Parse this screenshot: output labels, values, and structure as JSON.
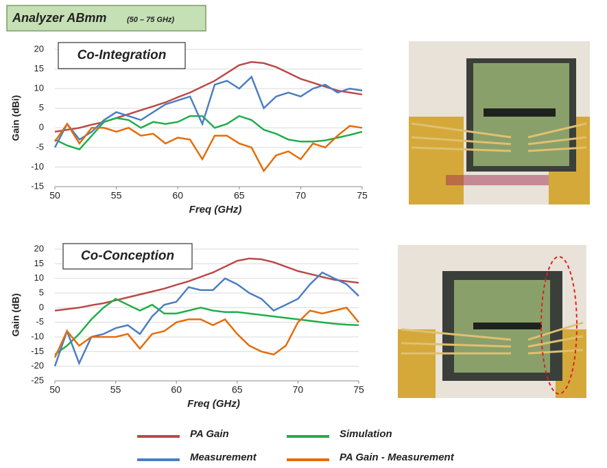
{
  "header": {
    "title": "Analyzer ABmm",
    "subtitle": "(50 – 75 GHz)"
  },
  "chart_data": [
    {
      "type": "line",
      "annotation": "Co-Integration",
      "xlabel": "Freq (GHz)",
      "ylabel": "Gain (dBi)",
      "x": [
        50,
        51,
        52,
        53,
        54,
        55,
        56,
        57,
        58,
        59,
        60,
        61,
        62,
        63,
        64,
        65,
        66,
        67,
        68,
        69,
        70,
        71,
        72,
        73,
        74,
        75
      ],
      "xlim": [
        50,
        75
      ],
      "xticks": [
        50,
        55,
        60,
        65,
        70,
        75
      ],
      "ylim": [
        -15,
        20
      ],
      "yticks": [
        -15,
        -10,
        -5,
        0,
        5,
        10,
        15,
        20
      ],
      "grid": true,
      "series": [
        {
          "name": "PA Gain",
          "color": "#b94a48",
          "values": [
            -1,
            -0.5,
            0,
            0.8,
            1.5,
            2.5,
            3.5,
            4.5,
            5.5,
            6.5,
            7.8,
            9,
            10.5,
            12,
            14,
            16,
            16.8,
            16.5,
            15.5,
            14,
            12.5,
            11.5,
            10.5,
            9.5,
            9,
            8.5
          ]
        },
        {
          "name": "Simulation",
          "color": "#1fae4a",
          "values": [
            -3,
            -4.5,
            -5.5,
            -2,
            1.5,
            2.5,
            2,
            0,
            1.5,
            1,
            1.5,
            3,
            3,
            0,
            1,
            3,
            2,
            -0.5,
            -1.5,
            -3,
            -3.5,
            -3.5,
            -3.2,
            -2.5,
            -1.8,
            -1
          ]
        },
        {
          "name": "Measurement",
          "color": "#4a7ec2",
          "values": [
            -5,
            1,
            -3,
            -1,
            2,
            4,
            3,
            2,
            4,
            6,
            7,
            8,
            1,
            11,
            12,
            10,
            13,
            5,
            8,
            9,
            8,
            10,
            11,
            9,
            10,
            9.5
          ]
        },
        {
          "name": "PA Gain - Measurement",
          "color": "#e46c0a",
          "values": [
            -3.5,
            1,
            -4,
            0,
            0,
            -1,
            0,
            -2,
            -1.5,
            -4,
            -2.5,
            -3,
            -8,
            -2,
            -2,
            -4,
            -5,
            -11,
            -7,
            -6,
            -8,
            -4,
            -5,
            -2,
            0.5,
            0
          ]
        }
      ]
    },
    {
      "type": "line",
      "annotation": "Co-Conception",
      "xlabel": "Freq (GHz)",
      "ylabel": "Gain (dB)",
      "x": [
        50,
        51,
        52,
        53,
        54,
        55,
        56,
        57,
        58,
        59,
        60,
        61,
        62,
        63,
        64,
        65,
        66,
        67,
        68,
        69,
        70,
        71,
        72,
        73,
        74,
        75
      ],
      "xlim": [
        50,
        75
      ],
      "xticks": [
        50,
        55,
        60,
        65,
        70,
        75
      ],
      "ylim": [
        -25,
        20
      ],
      "yticks": [
        -25,
        -20,
        -15,
        -10,
        -5,
        0,
        5,
        10,
        15,
        20
      ],
      "grid": true,
      "series": [
        {
          "color": "#b94a48",
          "values": [
            -1,
            -0.5,
            0,
            0.8,
            1.5,
            2.5,
            3.5,
            4.5,
            5.5,
            6.5,
            7.8,
            9,
            10.5,
            12,
            14,
            16,
            16.8,
            16.5,
            15.5,
            14,
            12.5,
            11.5,
            10.5,
            9.5,
            9,
            8.5
          ]
        },
        {
          "color": "#1fae4a",
          "values": [
            -16,
            -13,
            -9,
            -4,
            0,
            3,
            1,
            -1,
            1,
            -2,
            -2,
            -1,
            0,
            -1,
            -1.5,
            -1.5,
            -2,
            -2.5,
            -3,
            -3.5,
            -4,
            -4.5,
            -5,
            -5.5,
            -5.8,
            -6
          ]
        },
        {
          "color": "#4a7ec2",
          "values": [
            -20,
            -8,
            -19,
            -10,
            -9,
            -7,
            -6,
            -9,
            -3,
            1,
            2,
            7,
            6,
            6,
            10,
            8,
            5,
            3,
            -1,
            1,
            3,
            8,
            12,
            10,
            8,
            4
          ]
        },
        {
          "color": "#e46c0a",
          "values": [
            -17,
            -8,
            -13,
            -10,
            -10,
            -10,
            -9,
            -14,
            -9,
            -8,
            -5,
            -4,
            -4,
            -6,
            -4,
            -9,
            -13,
            -15,
            -16,
            -13,
            -5,
            -1,
            -2,
            -1,
            0,
            -5
          ]
        }
      ]
    }
  ]
}
